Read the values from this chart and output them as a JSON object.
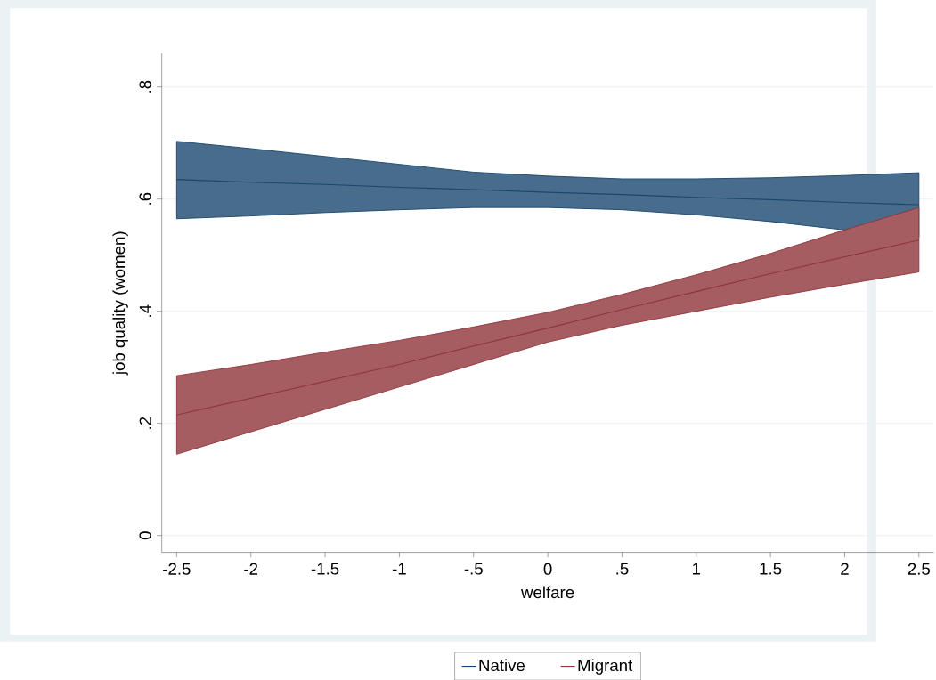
{
  "chart_data": {
    "type": "line",
    "xlabel": "welfare",
    "ylabel": "job quality (women)",
    "x": [
      -2.5,
      -2,
      -1.5,
      -1,
      -0.5,
      0,
      0.5,
      1,
      1.5,
      2,
      2.5
    ],
    "series": [
      {
        "name": "Native",
        "color": "#1a476f",
        "values": [
          0.635,
          0.63,
          0.626,
          0.621,
          0.617,
          0.612,
          0.608,
          0.603,
          0.599,
          0.594,
          0.59
        ],
        "upper": [
          0.703,
          0.69,
          0.676,
          0.662,
          0.648,
          0.641,
          0.636,
          0.636,
          0.638,
          0.642,
          0.647
        ],
        "lower": [
          0.565,
          0.57,
          0.576,
          0.581,
          0.585,
          0.585,
          0.581,
          0.572,
          0.56,
          0.545,
          0.532
        ]
      },
      {
        "name": "Migrant",
        "color": "#90353b",
        "values": [
          0.215,
          0.245,
          0.275,
          0.305,
          0.338,
          0.37,
          0.403,
          0.435,
          0.467,
          0.497,
          0.527
        ],
        "upper": [
          0.285,
          0.305,
          0.327,
          0.348,
          0.372,
          0.398,
          0.43,
          0.465,
          0.503,
          0.545,
          0.585
        ],
        "lower": [
          0.145,
          0.185,
          0.225,
          0.265,
          0.305,
          0.345,
          0.375,
          0.4,
          0.425,
          0.448,
          0.47
        ]
      }
    ],
    "xlim": [
      -2.6,
      2.6
    ],
    "ylim": [
      -0.03,
      0.86
    ],
    "xticks": [
      -2.5,
      -2,
      -1.5,
      -1,
      {
        "value": -0.5,
        "label": "-.5"
      },
      0,
      {
        "value": 0.5,
        "label": ".5"
      },
      1,
      1.5,
      2,
      2.5
    ],
    "yticks": [
      0,
      {
        "value": 0.2,
        "label": ".2"
      },
      {
        "value": 0.4,
        "label": ".4"
      },
      {
        "value": 0.6,
        "label": ".6"
      },
      {
        "value": 0.8,
        "label": ".8"
      }
    ],
    "grid": "y",
    "legend": "bottom",
    "marker": "none",
    "line_style": "solid"
  }
}
